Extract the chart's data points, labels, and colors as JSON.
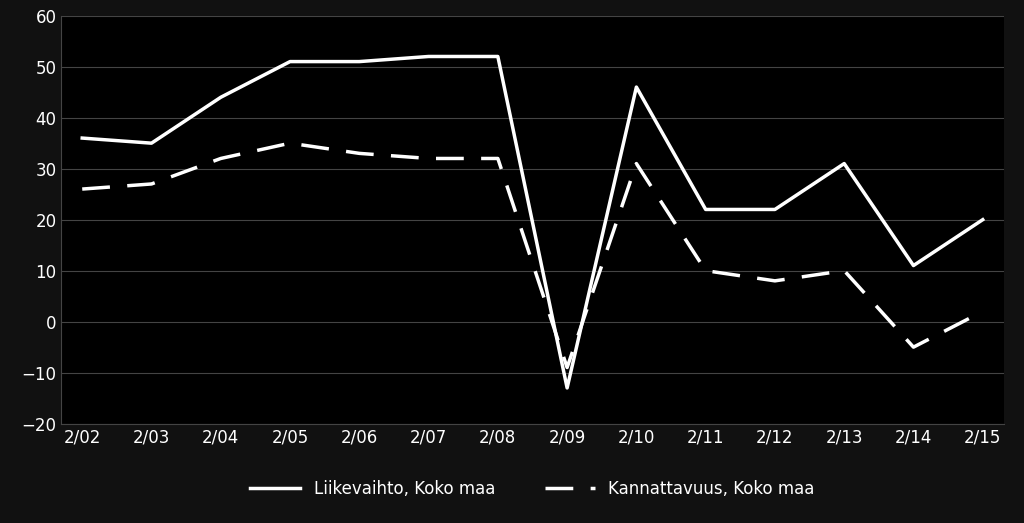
{
  "background_color": "#111111",
  "plot_bg_color": "#000000",
  "line_color": "#ffffff",
  "grid_color": "#444444",
  "text_color": "#ffffff",
  "ylim": [
    -20,
    60
  ],
  "yticks": [
    -20,
    -10,
    0,
    10,
    20,
    30,
    40,
    50,
    60
  ],
  "xtick_labels": [
    "2/02",
    "2/03",
    "2/04",
    "2/05",
    "2/06",
    "2/07",
    "2/08",
    "2/09",
    "2/10",
    "2/11",
    "2/12",
    "2/13",
    "2/14",
    "2/15"
  ],
  "legend_labels": [
    "Liikevaihto, Koko maa",
    "Kannattavuus, Koko maa"
  ],
  "liikevaihto": [
    36,
    35,
    44,
    51,
    51,
    52,
    52,
    -13,
    46,
    22,
    22,
    31,
    11,
    20
  ],
  "kannattavuus": [
    26,
    27,
    32,
    35,
    33,
    32,
    32,
    -9,
    31,
    10,
    8,
    10,
    -5,
    2
  ]
}
